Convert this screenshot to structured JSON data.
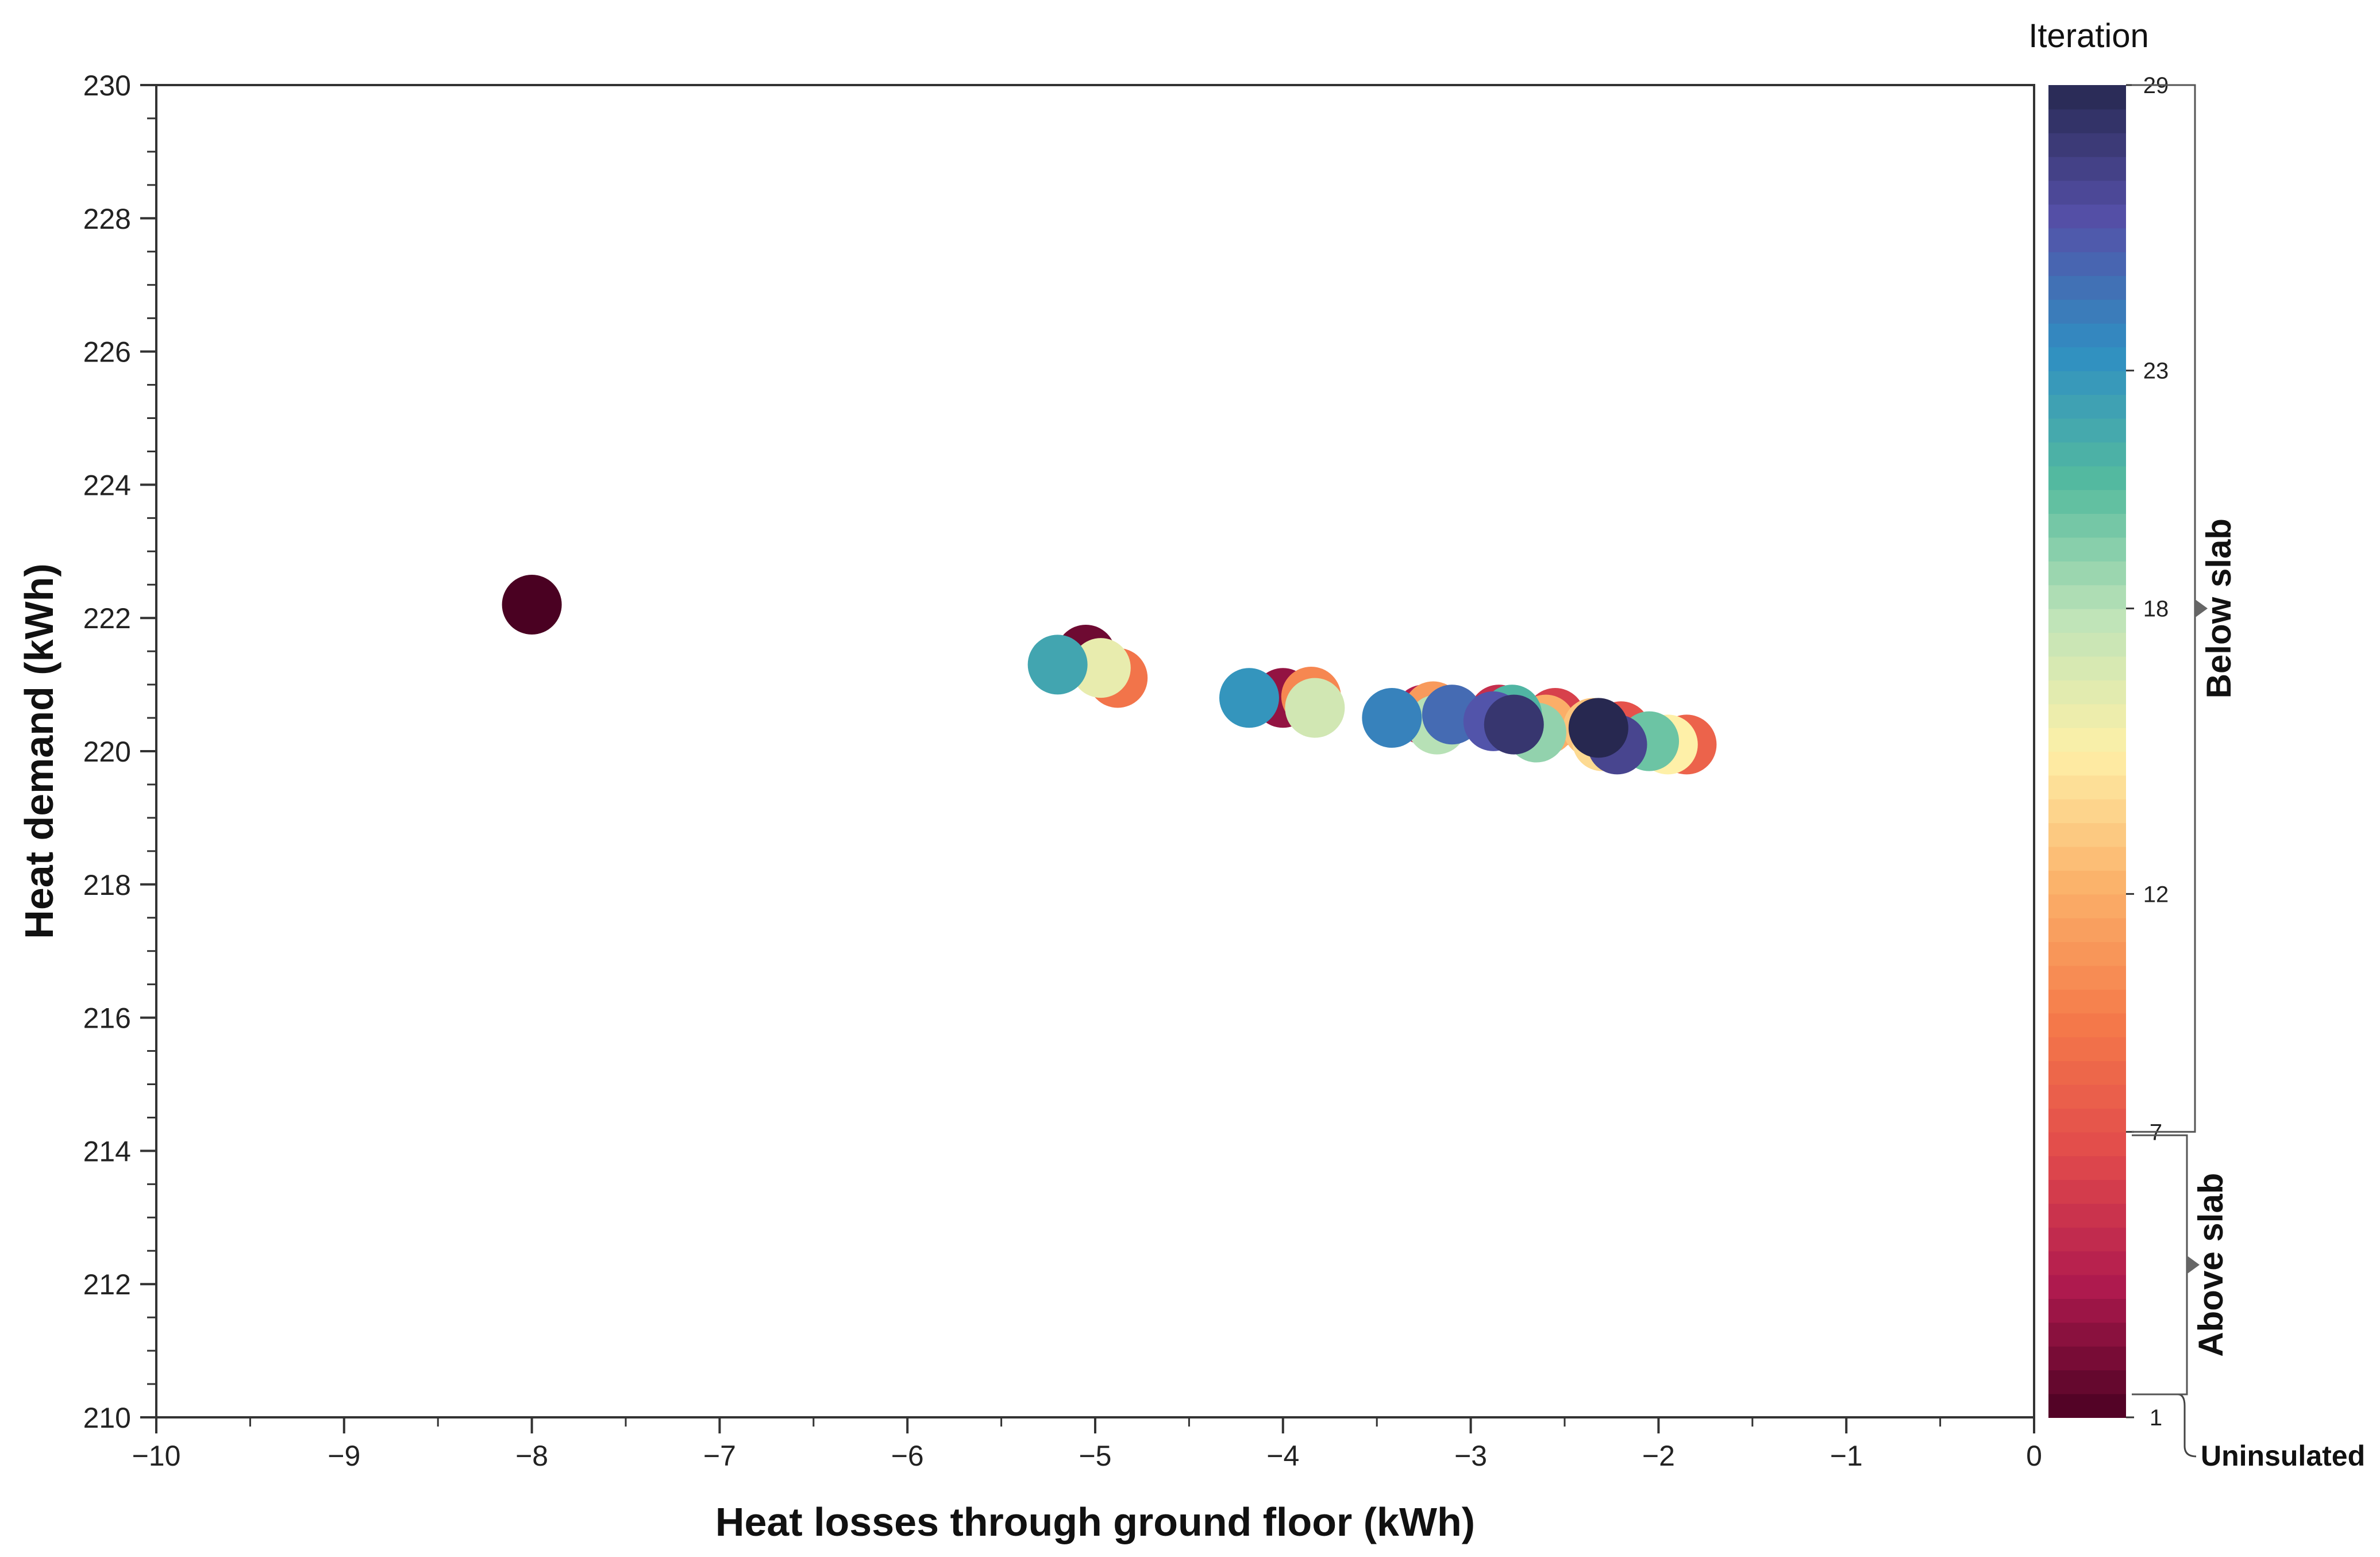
{
  "chart_data": {
    "type": "scatter",
    "title": "",
    "xlabel": "Heat losses through ground floor (kWh)",
    "ylabel": "Heat demand (kWh)",
    "xlim": [
      -10,
      0
    ],
    "ylim": [
      210,
      230
    ],
    "x_ticks": [
      -10,
      -9,
      -8,
      -7,
      -6,
      -5,
      -4,
      -3,
      -2,
      -1,
      0
    ],
    "x_tick_labels": [
      "−10",
      "−9",
      "−8",
      "−7",
      "−6",
      "−5",
      "−4",
      "−3",
      "−2",
      "−1",
      "0"
    ],
    "y_ticks": [
      210,
      212,
      214,
      216,
      218,
      220,
      222,
      224,
      226,
      228,
      230
    ],
    "y_tick_labels": [
      "210",
      "212",
      "214",
      "216",
      "218",
      "220",
      "222",
      "224",
      "226",
      "228",
      "230"
    ],
    "grid": false,
    "colorbar": {
      "title": "Iteration",
      "min": 1,
      "max": 29,
      "ticks": [
        1,
        7,
        12,
        18,
        23,
        29
      ],
      "tick_labels": [
        "1",
        "7",
        "12",
        "18",
        "23",
        "29"
      ],
      "colormap": "Spectral (reversed)",
      "colors": [
        "#4a0122",
        "#b01a4f",
        "#e24b4b",
        "#f57b4a",
        "#fbb26a",
        "#fef0a8",
        "#bfe4b8",
        "#55bb9e",
        "#2f8fc2",
        "#5550a8",
        "#272850"
      ]
    },
    "groups": [
      {
        "label": "Uninsulated",
        "from": 1,
        "to": 1
      },
      {
        "label": "Above slab",
        "from": 1,
        "to": 7
      },
      {
        "label": "Below slab",
        "from": 7,
        "to": 29
      }
    ],
    "points": [
      {
        "x": -8.0,
        "y": 222.2,
        "iteration": 1
      },
      {
        "x": -5.05,
        "y": 221.45,
        "iteration": 2
      },
      {
        "x": -4.0,
        "y": 220.8,
        "iteration": 3
      },
      {
        "x": -3.25,
        "y": 220.55,
        "iteration": 4
      },
      {
        "x": -2.85,
        "y": 220.55,
        "iteration": 5
      },
      {
        "x": -2.55,
        "y": 220.5,
        "iteration": 6
      },
      {
        "x": -2.2,
        "y": 220.3,
        "iteration": 7
      },
      {
        "x": -1.85,
        "y": 220.1,
        "iteration": 8
      },
      {
        "x": -4.88,
        "y": 221.1,
        "iteration": 9
      },
      {
        "x": -3.85,
        "y": 220.82,
        "iteration": 10
      },
      {
        "x": -3.2,
        "y": 220.6,
        "iteration": 11
      },
      {
        "x": -2.6,
        "y": 220.4,
        "iteration": 12
      },
      {
        "x": -2.35,
        "y": 220.35,
        "iteration": 13
      },
      {
        "x": -2.3,
        "y": 220.15,
        "iteration": 14
      },
      {
        "x": -1.95,
        "y": 220.1,
        "iteration": 15
      },
      {
        "x": -4.97,
        "y": 221.25,
        "iteration": 16
      },
      {
        "x": -3.83,
        "y": 220.65,
        "iteration": 17
      },
      {
        "x": -3.18,
        "y": 220.4,
        "iteration": 18
      },
      {
        "x": -2.65,
        "y": 220.28,
        "iteration": 19
      },
      {
        "x": -2.05,
        "y": 220.15,
        "iteration": 20
      },
      {
        "x": -2.78,
        "y": 220.55,
        "iteration": 21
      },
      {
        "x": -5.2,
        "y": 221.3,
        "iteration": 22
      },
      {
        "x": -4.18,
        "y": 220.8,
        "iteration": 23
      },
      {
        "x": -3.42,
        "y": 220.5,
        "iteration": 24
      },
      {
        "x": -3.1,
        "y": 220.55,
        "iteration": 25
      },
      {
        "x": -2.88,
        "y": 220.45,
        "iteration": 26
      },
      {
        "x": -2.22,
        "y": 220.1,
        "iteration": 27
      },
      {
        "x": -2.77,
        "y": 220.4,
        "iteration": 28
      },
      {
        "x": -2.32,
        "y": 220.35,
        "iteration": 29
      }
    ]
  }
}
